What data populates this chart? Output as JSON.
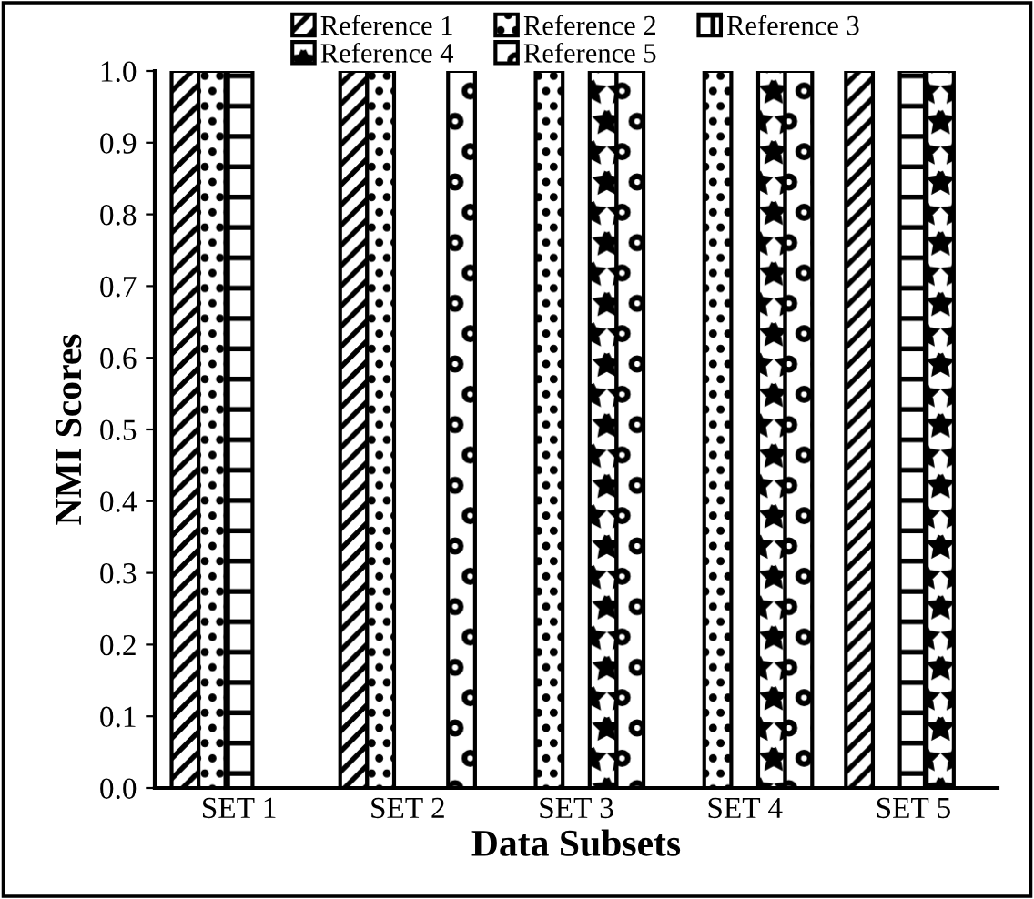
{
  "chart_data": {
    "type": "bar",
    "xlabel": "Data Subsets",
    "ylabel": "NMI Scores",
    "categories": [
      "SET 1",
      "SET 2",
      "SET 3",
      "SET 4",
      "SET 5"
    ],
    "series": [
      {
        "name": "Reference 1",
        "color": "#000000",
        "values": [
          1.0,
          1.0,
          0,
          0,
          1.0
        ]
      },
      {
        "name": "Reference 2",
        "color": "#000000",
        "values": [
          1.0,
          1.0,
          1.0,
          1.0,
          0
        ]
      },
      {
        "name": "Reference 3",
        "color": "#000000",
        "values": [
          1.0,
          0,
          0,
          0,
          1.0
        ]
      },
      {
        "name": "Reference 4",
        "color": "#000000",
        "values": [
          0,
          0,
          1.0,
          1.0,
          1.0
        ]
      },
      {
        "name": "Reference 5",
        "color": "#000000",
        "values": [
          0,
          1.0,
          1.0,
          1.0,
          0
        ]
      }
    ],
    "ylim": [
      0,
      1.0
    ],
    "yticks": [
      {
        "value": 0,
        "label": "0.0"
      },
      0.1,
      0.2,
      0.3,
      0.4,
      0.5,
      0.6,
      0.7,
      0.8,
      0.9,
      {
        "value": 1.0,
        "label": "1.0"
      }
    ],
    "grid": false,
    "legend": "top"
  }
}
